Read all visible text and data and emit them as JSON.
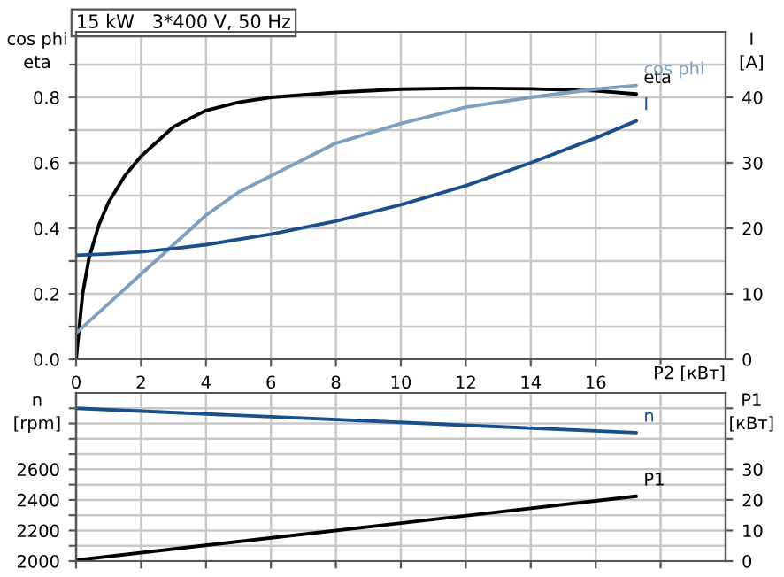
{
  "chart_data": [
    {
      "type": "line",
      "title": "15 kW   3*400 V, 50 Hz",
      "xlabel": "P2 [кВт]",
      "ylabel": "cos phi\neta",
      "y2label": "I\n[A]",
      "xlim": [
        0,
        20
      ],
      "xticks": [
        0,
        2,
        4,
        6,
        8,
        10,
        12,
        14,
        16,
        {
          "value": 18,
          "label": null
        }
      ],
      "ylim": [
        0,
        1
      ],
      "yticks": [
        {
          "value": 0,
          "label": "0.0"
        },
        {
          "value": 0.1,
          "label": null
        },
        {
          "value": 0.2,
          "label": "0.2"
        },
        {
          "value": 0.3,
          "label": null
        },
        {
          "value": 0.4,
          "label": "0.4"
        },
        {
          "value": 0.5,
          "label": null
        },
        {
          "value": 0.6,
          "label": "0.6"
        },
        {
          "value": 0.7,
          "label": null
        },
        {
          "value": 0.8,
          "label": "0.8"
        },
        {
          "value": 0.9,
          "label": null
        }
      ],
      "y2lim": [
        0,
        50
      ],
      "y2ticks": [
        0,
        10,
        20,
        30,
        40
      ],
      "grid": true,
      "series": [
        {
          "name": "eta",
          "color": "#000000",
          "x": [
            0,
            0.2,
            0.4,
            0.7,
            1.0,
            1.5,
            2,
            3,
            4,
            5,
            6,
            8,
            10,
            12,
            14,
            16,
            17.25
          ],
          "values": [
            0,
            0.2,
            0.31,
            0.41,
            0.48,
            0.56,
            0.62,
            0.71,
            0.76,
            0.785,
            0.8,
            0.815,
            0.825,
            0.828,
            0.826,
            0.82,
            0.81
          ]
        },
        {
          "name": "cos phi",
          "color": "#7f9fbf",
          "x": [
            0,
            1,
            2,
            3,
            4,
            5,
            6,
            8,
            10,
            12,
            14,
            16,
            17.25
          ],
          "values": [
            0.08,
            0.17,
            0.26,
            0.35,
            0.44,
            0.51,
            0.56,
            0.66,
            0.72,
            0.77,
            0.8,
            0.825,
            0.836
          ]
        },
        {
          "name": "I",
          "color": "#1a4f8a",
          "axis": "y2",
          "x": [
            0,
            1,
            2,
            3,
            4,
            6,
            8,
            10,
            12,
            14,
            16,
            17.25
          ],
          "values": [
            15.9,
            16.1,
            16.4,
            16.9,
            17.5,
            19.1,
            21.1,
            23.6,
            26.5,
            30,
            33.8,
            36.4
          ]
        }
      ]
    },
    {
      "type": "line",
      "ylabel": "n\n[rpm]",
      "y2label": "P1\n[кВт]",
      "tick_labels": "y",
      "xlim": [
        0,
        20
      ],
      "xticks": [
        0,
        2,
        4,
        6,
        8,
        10,
        12,
        14,
        16,
        18
      ],
      "ylim": [
        2000,
        3100
      ],
      "yticks": [
        2000,
        {
          "value": 2100,
          "label": null
        },
        2200,
        {
          "value": 2300,
          "label": null
        },
        2400,
        {
          "value": 2500,
          "label": null
        },
        2600,
        {
          "value": 2700,
          "label": null
        },
        {
          "value": 2800,
          "label": null
        },
        {
          "value": 2900,
          "label": null
        },
        {
          "value": 3000,
          "label": null
        }
      ],
      "y2lim": [
        0,
        55
      ],
      "y2ticks": [
        0,
        10,
        20,
        30,
        {
          "value": 40,
          "label": null
        },
        {
          "value": 50,
          "label": null
        }
      ],
      "grid": true,
      "series": [
        {
          "name": "n",
          "color": "#1a4f8a",
          "x": [
            0,
            17.25
          ],
          "values": [
            3000,
            2840
          ]
        },
        {
          "name": "P1",
          "color": "#000000",
          "axis": "y2",
          "x": [
            0,
            17.25
          ],
          "values": [
            0.3,
            21.2
          ]
        }
      ]
    }
  ]
}
